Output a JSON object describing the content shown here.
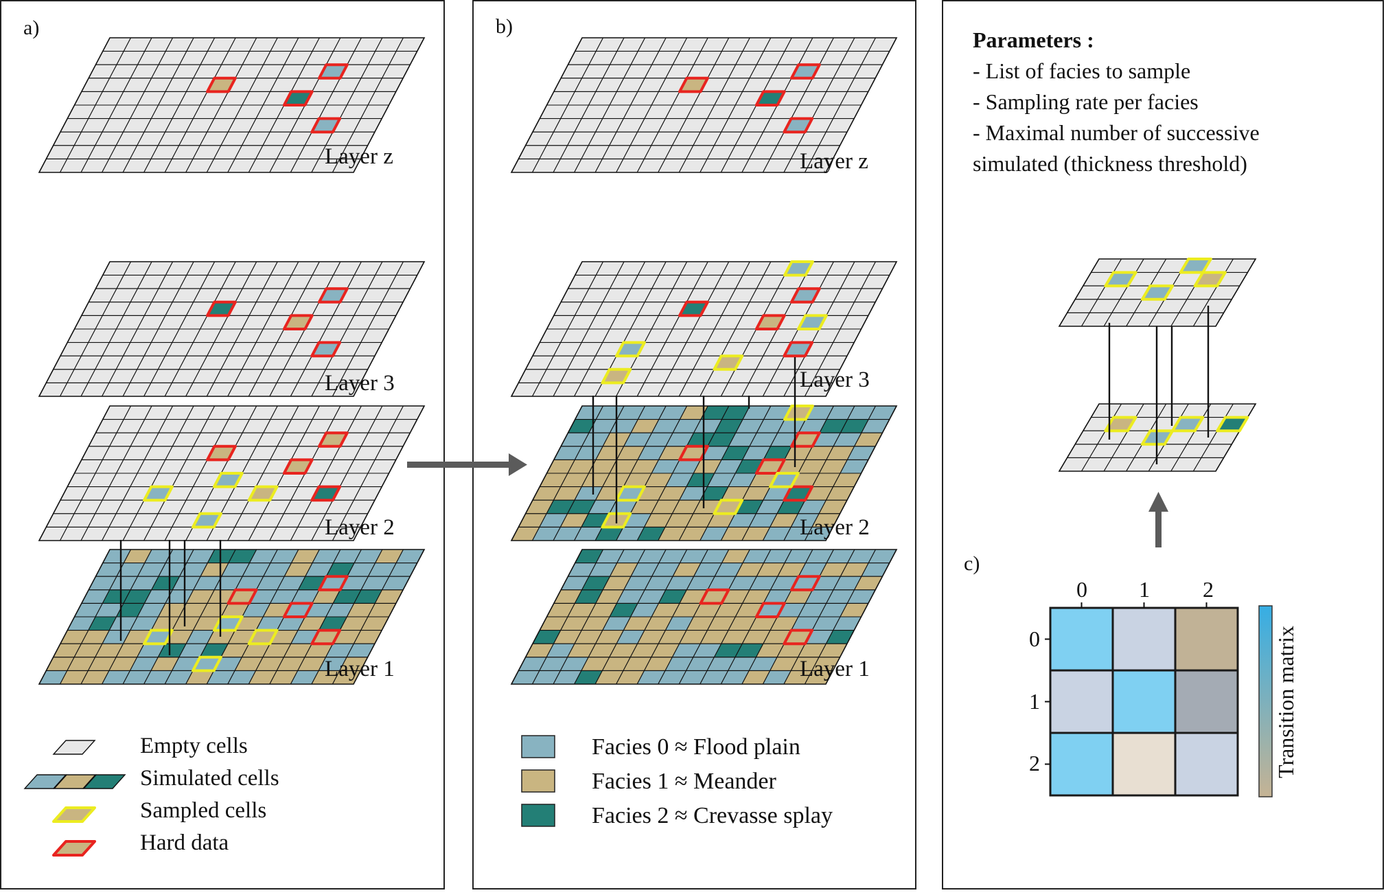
{
  "colors": {
    "empty": "#e8e8e8",
    "facies0": "#88b3c1",
    "facies1": "#c9b581",
    "facies2": "#237f76",
    "hardData": "#e8241f",
    "sampled": "#ecec20",
    "arrow": "#5b5b5b",
    "matrixBlueBright": "#7fd0f2",
    "matrixBlueGrey": "#c9d3e3",
    "matrixTan": "#c1b296",
    "matrixGrey": "#a4abb4",
    "matrixCream": "#e8dfd2",
    "matrixBarTop": "#36aee4",
    "matrixBarBottom": "#c5b394"
  },
  "panel_a": {
    "label": "a)",
    "layers": [
      "Layer z",
      "Layer 3",
      "Layer 2",
      "Layer 1"
    ],
    "legend": [
      "Empty cells",
      "Simulated cells",
      "Sampled cells",
      "Hard data"
    ]
  },
  "panel_b": {
    "label": "b)",
    "layers": [
      "Layer z",
      "Layer 3",
      "Layer 2",
      "Layer 1"
    ],
    "legend": [
      "Facies 0 ≈ Flood plain",
      "Facies 1 ≈ Meander",
      "Facies 2 ≈ Crevasse splay"
    ]
  },
  "panel_c": {
    "label": "c)",
    "parameters_title": "Parameters :",
    "parameters": [
      "- List of facies to sample",
      "- Sampling rate per facies",
      "- Maximal number of successive",
      "simulated (thickness threshold)"
    ],
    "matrix": {
      "title": "Transition matrix",
      "col_labels": [
        "0",
        "1",
        "2"
      ],
      "row_labels": [
        "0",
        "1",
        "2"
      ],
      "cells": [
        [
          "matrixBlueBright",
          "matrixBlueGrey",
          "matrixTan"
        ],
        [
          "matrixBlueGrey",
          "matrixBlueBright",
          "matrixGrey"
        ],
        [
          "matrixBlueBright",
          "matrixCream",
          "matrixBlueGrey"
        ]
      ]
    }
  }
}
